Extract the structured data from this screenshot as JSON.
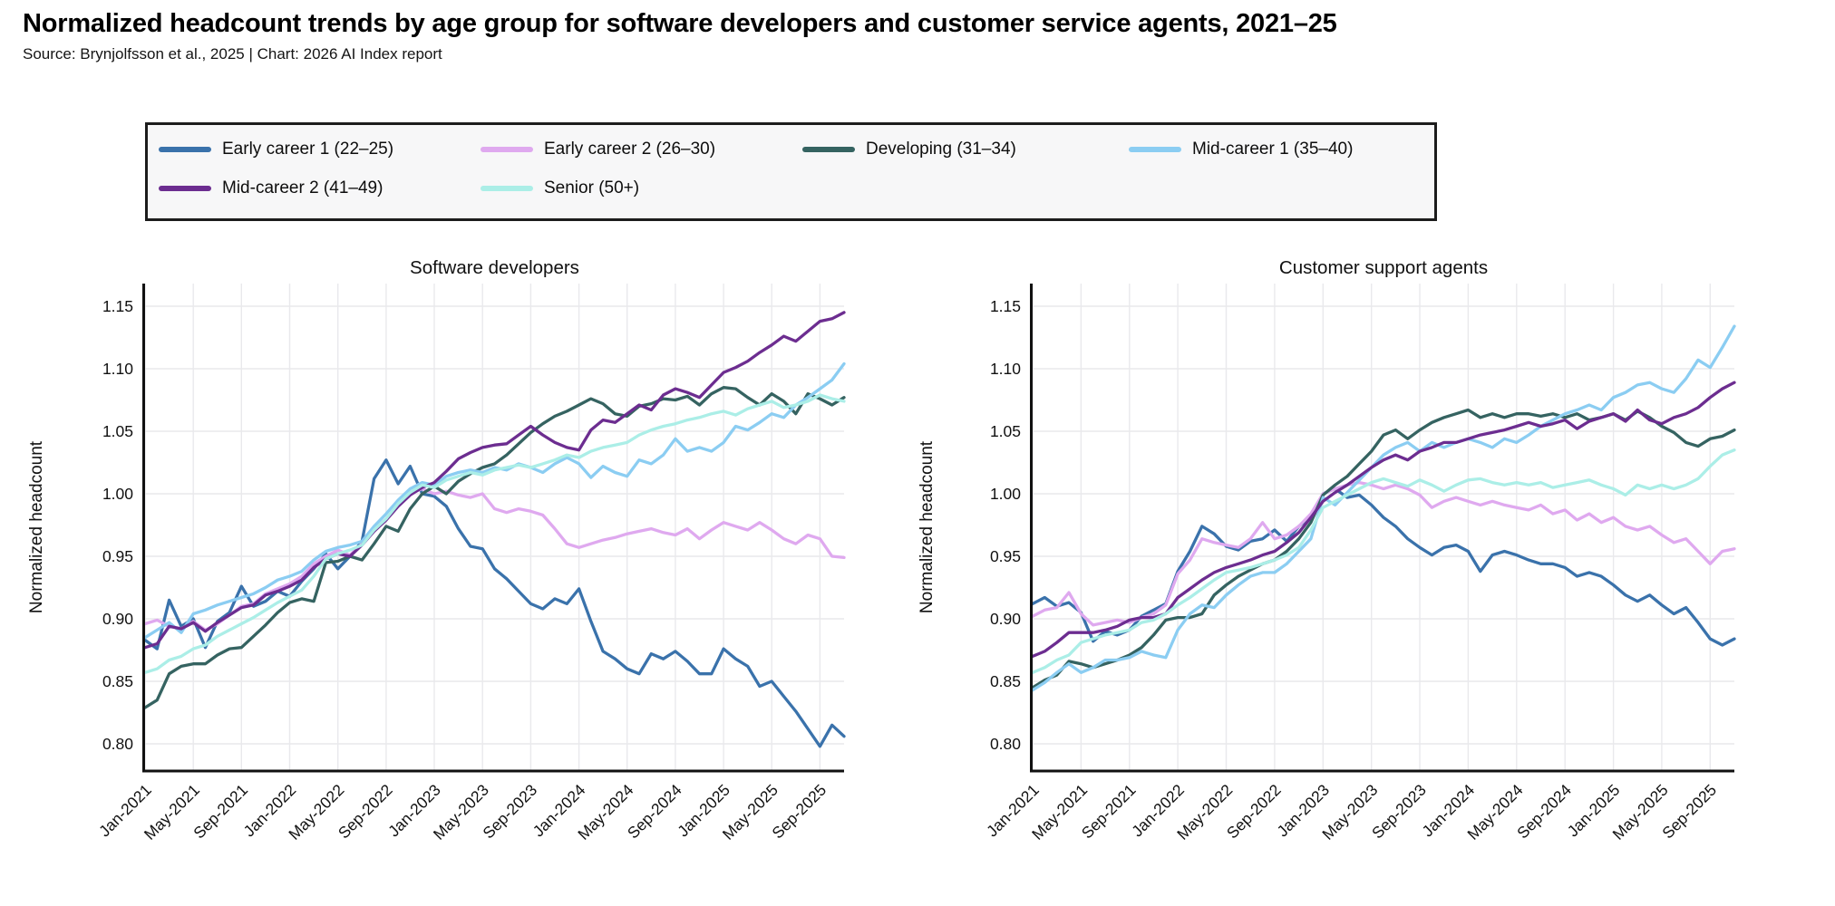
{
  "header": {
    "title": "Normalized headcount trends by age group for software developers and customer service agents, 2021–25",
    "source_line": "Source: Brynjolfsson et al., 2025 | Chart: 2026 AI Index report"
  },
  "legend": {
    "items": [
      {
        "label": "Early career 1 (22–25)",
        "color": "#3a72ab"
      },
      {
        "label": "Early career 2 (26–30)",
        "color": "#dfa9ef"
      },
      {
        "label": "Developing (31–34)",
        "color": "#356361"
      },
      {
        "label": "Mid-career 1 (35–40)",
        "color": "#8bcdf2"
      },
      {
        "label": "Mid-career 2 (41–49)",
        "color": "#6c2d90"
      },
      {
        "label": "Senior (50+)",
        "color": "#abeee7"
      }
    ]
  },
  "chart_data": [
    {
      "type": "line",
      "title": "Software developers",
      "ylabel": "Normalized headcount",
      "ylim": [
        0.778,
        1.168
      ],
      "y_ticks": [
        0.8,
        0.85,
        0.9,
        0.95,
        1.0,
        1.05,
        1.1,
        1.15
      ],
      "x_tick_labels": [
        "Jan-2021",
        "May-2021",
        "Sep-2021",
        "Jan-2022",
        "May-2022",
        "Sep-2022",
        "Jan-2023",
        "May-2023",
        "Sep-2023",
        "Jan-2024",
        "May-2024",
        "Sep-2024",
        "Jan-2025",
        "May-2025",
        "Sep-2025"
      ],
      "x_unit": "month",
      "n_points": 59,
      "x_range": [
        "Jan-2021",
        "Nov-2025"
      ],
      "grid": true,
      "legend_position": "top-outside",
      "series": [
        {
          "name": "Early career 1 (22–25)",
          "color": "#3a72ab",
          "values": [
            0.883,
            0.876,
            0.915,
            0.894,
            0.9,
            0.877,
            0.898,
            0.905,
            0.926,
            0.91,
            0.914,
            0.922,
            0.918,
            0.93,
            0.94,
            0.952,
            0.94,
            0.95,
            0.962,
            1.012,
            1.027,
            1.008,
            1.022,
            1.0,
            0.998,
            0.99,
            0.972,
            0.958,
            0.956,
            0.94,
            0.932,
            0.922,
            0.912,
            0.908,
            0.916,
            0.912,
            0.924,
            0.898,
            0.874,
            0.868,
            0.86,
            0.856,
            0.872,
            0.868,
            0.874,
            0.866,
            0.856,
            0.856,
            0.876,
            0.868,
            0.862,
            0.846,
            0.85,
            0.838,
            0.826,
            0.812,
            0.798,
            0.815,
            0.806
          ]
        },
        {
          "name": "Early career 2 (26–30)",
          "color": "#dfa9ef",
          "values": [
            0.896,
            0.899,
            0.894,
            0.892,
            0.898,
            0.891,
            0.896,
            0.903,
            0.91,
            0.912,
            0.92,
            0.924,
            0.928,
            0.934,
            0.944,
            0.95,
            0.955,
            0.951,
            0.96,
            0.971,
            0.98,
            0.991,
            1.0,
            1.004,
            1.0,
            1.002,
            0.999,
            0.997,
            1.0,
            0.988,
            0.985,
            0.988,
            0.986,
            0.983,
            0.972,
            0.96,
            0.957,
            0.96,
            0.963,
            0.965,
            0.968,
            0.97,
            0.972,
            0.969,
            0.967,
            0.972,
            0.964,
            0.971,
            0.977,
            0.974,
            0.971,
            0.977,
            0.971,
            0.964,
            0.96,
            0.967,
            0.964,
            0.95,
            0.949
          ]
        },
        {
          "name": "Developing (31–34)",
          "color": "#356361",
          "values": [
            0.829,
            0.835,
            0.856,
            0.862,
            0.864,
            0.864,
            0.871,
            0.876,
            0.877,
            0.886,
            0.895,
            0.905,
            0.913,
            0.916,
            0.914,
            0.945,
            0.946,
            0.95,
            0.947,
            0.96,
            0.974,
            0.97,
            0.988,
            1.0,
            1.006,
            1.0,
            1.01,
            1.016,
            1.021,
            1.024,
            1.031,
            1.04,
            1.049,
            1.056,
            1.062,
            1.066,
            1.071,
            1.076,
            1.072,
            1.064,
            1.062,
            1.07,
            1.072,
            1.076,
            1.075,
            1.078,
            1.071,
            1.08,
            1.085,
            1.084,
            1.077,
            1.071,
            1.08,
            1.074,
            1.064,
            1.08,
            1.076,
            1.071,
            1.077
          ]
        },
        {
          "name": "Mid-career 1 (35–40)",
          "color": "#8bcdf2",
          "values": [
            0.885,
            0.891,
            0.897,
            0.889,
            0.904,
            0.907,
            0.911,
            0.914,
            0.917,
            0.92,
            0.925,
            0.931,
            0.934,
            0.938,
            0.947,
            0.954,
            0.957,
            0.959,
            0.962,
            0.974,
            0.984,
            0.995,
            1.004,
            1.009,
            1.007,
            1.014,
            1.017,
            1.019,
            1.017,
            1.021,
            1.019,
            1.024,
            1.021,
            1.017,
            1.024,
            1.029,
            1.024,
            1.013,
            1.022,
            1.017,
            1.014,
            1.027,
            1.024,
            1.031,
            1.044,
            1.034,
            1.037,
            1.034,
            1.041,
            1.054,
            1.051,
            1.057,
            1.064,
            1.061,
            1.071,
            1.077,
            1.084,
            1.091,
            1.104
          ]
        },
        {
          "name": "Mid-career 2 (41–49)",
          "color": "#6c2d90",
          "values": [
            0.877,
            0.88,
            0.894,
            0.892,
            0.897,
            0.89,
            0.897,
            0.903,
            0.909,
            0.911,
            0.919,
            0.922,
            0.926,
            0.931,
            0.941,
            0.948,
            0.952,
            0.95,
            0.959,
            0.97,
            0.979,
            0.99,
            0.999,
            1.005,
            1.009,
            1.018,
            1.028,
            1.033,
            1.037,
            1.039,
            1.04,
            1.047,
            1.054,
            1.047,
            1.041,
            1.037,
            1.035,
            1.051,
            1.059,
            1.057,
            1.064,
            1.071,
            1.067,
            1.079,
            1.084,
            1.081,
            1.077,
            1.087,
            1.097,
            1.101,
            1.106,
            1.113,
            1.119,
            1.126,
            1.122,
            1.13,
            1.138,
            1.14,
            1.145
          ]
        },
        {
          "name": "Senior (50+)",
          "color": "#abeee7",
          "values": [
            0.857,
            0.86,
            0.867,
            0.87,
            0.876,
            0.879,
            0.886,
            0.891,
            0.896,
            0.901,
            0.907,
            0.913,
            0.918,
            0.923,
            0.934,
            0.948,
            0.952,
            0.955,
            0.959,
            0.971,
            0.98,
            0.992,
            1.001,
            1.007,
            1.005,
            1.011,
            1.014,
            1.017,
            1.015,
            1.019,
            1.021,
            1.023,
            1.021,
            1.024,
            1.027,
            1.031,
            1.029,
            1.034,
            1.037,
            1.039,
            1.041,
            1.047,
            1.051,
            1.054,
            1.056,
            1.059,
            1.061,
            1.064,
            1.066,
            1.063,
            1.068,
            1.071,
            1.074,
            1.069,
            1.071,
            1.074,
            1.079,
            1.076,
            1.074
          ]
        }
      ]
    },
    {
      "type": "line",
      "title": "Customer support agents",
      "ylabel": "Normalized headcount",
      "ylim": [
        0.778,
        1.168
      ],
      "y_ticks": [
        0.8,
        0.85,
        0.9,
        0.95,
        1.0,
        1.05,
        1.1,
        1.15
      ],
      "x_tick_labels": [
        "Jan-2021",
        "May-2021",
        "Sep-2021",
        "Jan-2022",
        "May-2022",
        "Sep-2022",
        "Jan-2023",
        "May-2023",
        "Sep-2023",
        "Jan-2024",
        "May-2024",
        "Sep-2024",
        "Jan-2025",
        "May-2025",
        "Sep-2025"
      ],
      "x_unit": "month",
      "n_points": 59,
      "x_range": [
        "Jan-2021",
        "Nov-2025"
      ],
      "grid": true,
      "legend_position": "top-outside",
      "series": [
        {
          "name": "Early career 1 (22–25)",
          "color": "#3a72ab",
          "values": [
            0.912,
            0.917,
            0.91,
            0.913,
            0.905,
            0.882,
            0.89,
            0.887,
            0.891,
            0.902,
            0.907,
            0.912,
            0.938,
            0.954,
            0.974,
            0.968,
            0.958,
            0.955,
            0.962,
            0.964,
            0.971,
            0.962,
            0.974,
            0.982,
            1.0,
            1.004,
            0.997,
            0.999,
            0.991,
            0.981,
            0.974,
            0.964,
            0.957,
            0.951,
            0.957,
            0.959,
            0.954,
            0.938,
            0.951,
            0.954,
            0.951,
            0.947,
            0.944,
            0.944,
            0.941,
            0.934,
            0.937,
            0.934,
            0.927,
            0.919,
            0.914,
            0.919,
            0.911,
            0.904,
            0.909,
            0.897,
            0.884,
            0.879,
            0.884
          ]
        },
        {
          "name": "Early career 2 (26–30)",
          "color": "#dfa9ef",
          "values": [
            0.902,
            0.907,
            0.909,
            0.921,
            0.904,
            0.895,
            0.897,
            0.899,
            0.897,
            0.901,
            0.904,
            0.911,
            0.936,
            0.947,
            0.964,
            0.961,
            0.959,
            0.957,
            0.964,
            0.977,
            0.964,
            0.967,
            0.974,
            0.984,
            1.0,
            1.004,
            1.007,
            1.009,
            1.007,
            1.004,
            1.007,
            1.004,
            0.999,
            0.989,
            0.994,
            0.997,
            0.994,
            0.991,
            0.994,
            0.991,
            0.989,
            0.987,
            0.991,
            0.984,
            0.987,
            0.979,
            0.984,
            0.977,
            0.981,
            0.974,
            0.971,
            0.974,
            0.967,
            0.961,
            0.964,
            0.954,
            0.944,
            0.954,
            0.956
          ]
        },
        {
          "name": "Developing (31–34)",
          "color": "#356361",
          "values": [
            0.845,
            0.851,
            0.855,
            0.866,
            0.864,
            0.861,
            0.864,
            0.867,
            0.871,
            0.877,
            0.887,
            0.899,
            0.901,
            0.901,
            0.904,
            0.919,
            0.927,
            0.934,
            0.939,
            0.944,
            0.947,
            0.954,
            0.964,
            0.977,
            0.999,
            1.007,
            1.014,
            1.024,
            1.034,
            1.047,
            1.051,
            1.044,
            1.051,
            1.057,
            1.061,
            1.064,
            1.067,
            1.061,
            1.064,
            1.061,
            1.064,
            1.064,
            1.062,
            1.064,
            1.061,
            1.064,
            1.059,
            1.061,
            1.064,
            1.059,
            1.066,
            1.061,
            1.054,
            1.049,
            1.041,
            1.038,
            1.044,
            1.046,
            1.051
          ]
        },
        {
          "name": "Mid-career 1 (35–40)",
          "color": "#8bcdf2",
          "values": [
            0.843,
            0.849,
            0.857,
            0.864,
            0.857,
            0.861,
            0.867,
            0.867,
            0.869,
            0.874,
            0.871,
            0.869,
            0.891,
            0.904,
            0.911,
            0.909,
            0.919,
            0.927,
            0.934,
            0.937,
            0.937,
            0.944,
            0.954,
            0.964,
            0.997,
            0.991,
            1.001,
            1.011,
            1.021,
            1.031,
            1.037,
            1.041,
            1.034,
            1.041,
            1.037,
            1.041,
            1.044,
            1.041,
            1.037,
            1.044,
            1.041,
            1.047,
            1.054,
            1.059,
            1.064,
            1.067,
            1.071,
            1.067,
            1.077,
            1.081,
            1.087,
            1.089,
            1.084,
            1.081,
            1.092,
            1.107,
            1.101,
            1.117,
            1.134
          ]
        },
        {
          "name": "Mid-career 2 (41–49)",
          "color": "#6c2d90",
          "values": [
            0.87,
            0.874,
            0.881,
            0.889,
            0.889,
            0.889,
            0.891,
            0.894,
            0.899,
            0.901,
            0.901,
            0.904,
            0.917,
            0.924,
            0.931,
            0.937,
            0.941,
            0.944,
            0.947,
            0.951,
            0.954,
            0.961,
            0.969,
            0.981,
            0.994,
            1.001,
            1.007,
            1.014,
            1.021,
            1.027,
            1.031,
            1.027,
            1.034,
            1.037,
            1.041,
            1.041,
            1.044,
            1.047,
            1.049,
            1.051,
            1.054,
            1.057,
            1.054,
            1.056,
            1.059,
            1.052,
            1.058,
            1.061,
            1.064,
            1.058,
            1.067,
            1.059,
            1.056,
            1.061,
            1.064,
            1.069,
            1.077,
            1.084,
            1.089
          ]
        },
        {
          "name": "Senior (50+)",
          "color": "#abeee7",
          "values": [
            0.857,
            0.861,
            0.867,
            0.871,
            0.881,
            0.884,
            0.887,
            0.889,
            0.891,
            0.897,
            0.899,
            0.904,
            0.911,
            0.917,
            0.924,
            0.931,
            0.937,
            0.939,
            0.941,
            0.944,
            0.947,
            0.951,
            0.957,
            0.971,
            0.989,
            0.994,
            0.999,
            1.004,
            1.009,
            1.012,
            1.009,
            1.006,
            1.011,
            1.007,
            1.002,
            1.007,
            1.011,
            1.012,
            1.009,
            1.007,
            1.009,
            1.007,
            1.009,
            1.005,
            1.007,
            1.009,
            1.011,
            1.007,
            1.004,
            0.999,
            1.007,
            1.004,
            1.007,
            1.004,
            1.007,
            1.012,
            1.022,
            1.031,
            1.035
          ]
        }
      ]
    }
  ]
}
